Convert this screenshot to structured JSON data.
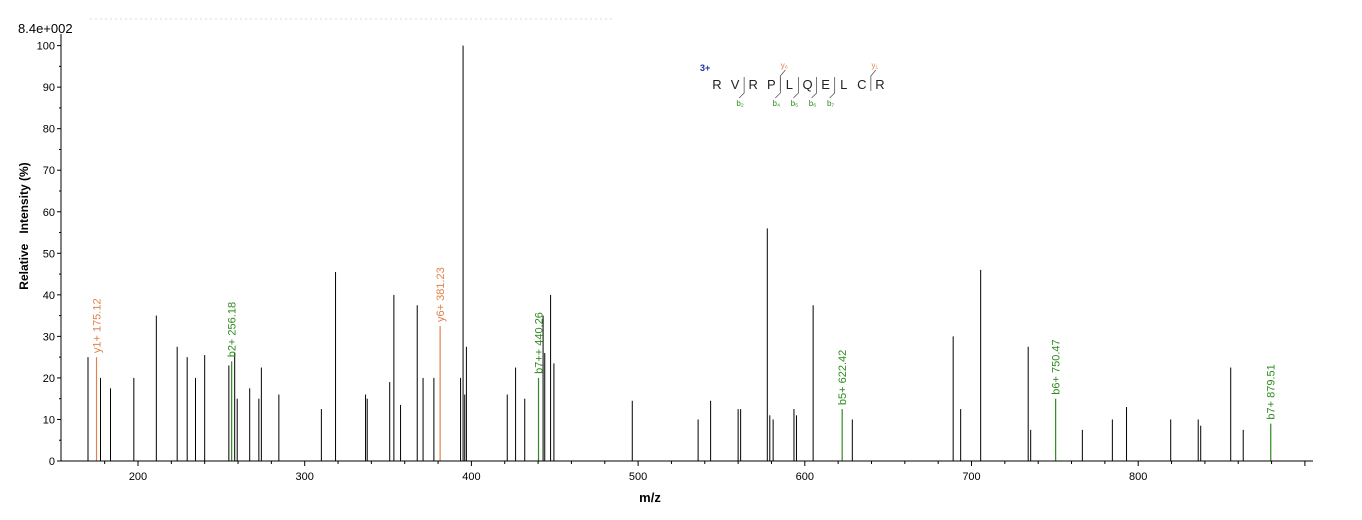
{
  "max_intensity_label": "8.4e+002",
  "chart_data": {
    "type": "bar",
    "xlabel": "m/z",
    "ylabel": "Relative   Intensity (%)",
    "xlim": [
      160,
      910
    ],
    "ylim": [
      0,
      102
    ],
    "x_ticks": [
      200,
      300,
      400,
      500,
      600,
      700,
      800
    ],
    "y_ticks": [
      0,
      10,
      20,
      30,
      40,
      50,
      60,
      70,
      80,
      90,
      100
    ],
    "peaks": [
      {
        "mz": 170.0,
        "intensity": 25
      },
      {
        "mz": 175.12,
        "intensity": 25,
        "label": "y1+ 175.12",
        "ion": "y"
      },
      {
        "mz": 177.5,
        "intensity": 20
      },
      {
        "mz": 183.5,
        "intensity": 17.5
      },
      {
        "mz": 197.5,
        "intensity": 20
      },
      {
        "mz": 211.0,
        "intensity": 35
      },
      {
        "mz": 223.5,
        "intensity": 27.5
      },
      {
        "mz": 229.5,
        "intensity": 25
      },
      {
        "mz": 234.5,
        "intensity": 20
      },
      {
        "mz": 240.0,
        "intensity": 25.5
      },
      {
        "mz": 254.5,
        "intensity": 23
      },
      {
        "mz": 256.18,
        "intensity": 24,
        "label": "b2+ 256.18",
        "ion": "b"
      },
      {
        "mz": 258.0,
        "intensity": 26
      },
      {
        "mz": 259.5,
        "intensity": 15
      },
      {
        "mz": 267.0,
        "intensity": 17.5
      },
      {
        "mz": 272.5,
        "intensity": 15
      },
      {
        "mz": 274.0,
        "intensity": 22.5
      },
      {
        "mz": 284.5,
        "intensity": 16
      },
      {
        "mz": 310.0,
        "intensity": 12.5
      },
      {
        "mz": 318.5,
        "intensity": 45.5
      },
      {
        "mz": 336.5,
        "intensity": 16
      },
      {
        "mz": 337.5,
        "intensity": 15
      },
      {
        "mz": 351.0,
        "intensity": 19
      },
      {
        "mz": 353.5,
        "intensity": 40
      },
      {
        "mz": 357.5,
        "intensity": 13.5
      },
      {
        "mz": 367.5,
        "intensity": 37.5
      },
      {
        "mz": 371.0,
        "intensity": 20
      },
      {
        "mz": 377.5,
        "intensity": 20
      },
      {
        "mz": 381.23,
        "intensity": 32.5,
        "label": "y6+ 381.23",
        "ion": "y"
      },
      {
        "mz": 393.5,
        "intensity": 20
      },
      {
        "mz": 395.0,
        "intensity": 100
      },
      {
        "mz": 396.0,
        "intensity": 16
      },
      {
        "mz": 397.0,
        "intensity": 27.5
      },
      {
        "mz": 421.5,
        "intensity": 16
      },
      {
        "mz": 426.5,
        "intensity": 22.5
      },
      {
        "mz": 432.0,
        "intensity": 15
      },
      {
        "mz": 440.26,
        "intensity": 20,
        "label": "b7++ 440.26",
        "ion": "b"
      },
      {
        "mz": 443.0,
        "intensity": 35
      },
      {
        "mz": 444.0,
        "intensity": 26
      },
      {
        "mz": 447.5,
        "intensity": 40
      },
      {
        "mz": 449.5,
        "intensity": 23.5
      },
      {
        "mz": 496.5,
        "intensity": 14.5
      },
      {
        "mz": 536.0,
        "intensity": 10
      },
      {
        "mz": 543.5,
        "intensity": 14.5
      },
      {
        "mz": 560.0,
        "intensity": 12.5
      },
      {
        "mz": 561.5,
        "intensity": 12.5
      },
      {
        "mz": 577.5,
        "intensity": 56
      },
      {
        "mz": 579.0,
        "intensity": 11
      },
      {
        "mz": 581.0,
        "intensity": 10
      },
      {
        "mz": 593.5,
        "intensity": 12.5
      },
      {
        "mz": 595.0,
        "intensity": 11
      },
      {
        "mz": 605.0,
        "intensity": 37.5
      },
      {
        "mz": 622.42,
        "intensity": 12.5,
        "label": "b5+ 622.42",
        "ion": "b"
      },
      {
        "mz": 628.5,
        "intensity": 10
      },
      {
        "mz": 689.0,
        "intensity": 30
      },
      {
        "mz": 693.5,
        "intensity": 12.5
      },
      {
        "mz": 705.5,
        "intensity": 46
      },
      {
        "mz": 734.0,
        "intensity": 27.5
      },
      {
        "mz": 735.5,
        "intensity": 7.5
      },
      {
        "mz": 750.47,
        "intensity": 15,
        "label": "b6+ 750.47",
        "ion": "b"
      },
      {
        "mz": 766.5,
        "intensity": 7.5
      },
      {
        "mz": 784.5,
        "intensity": 10
      },
      {
        "mz": 793.0,
        "intensity": 13
      },
      {
        "mz": 819.5,
        "intensity": 10
      },
      {
        "mz": 836.0,
        "intensity": 10
      },
      {
        "mz": 837.5,
        "intensity": 8.5
      },
      {
        "mz": 855.5,
        "intensity": 22.5
      },
      {
        "mz": 863.0,
        "intensity": 7.5
      },
      {
        "mz": 879.51,
        "intensity": 9,
        "label": "b7+ 879.51",
        "ion": "b"
      }
    ],
    "colors": {
      "b_ion": "#2e8b1e",
      "y_ion": "#e0824a",
      "unassigned": "#000000",
      "charge": "#1a2fa0"
    },
    "sequence": {
      "charge": "3+",
      "residues": [
        "R",
        "V",
        "R",
        "P",
        "L",
        "Q",
        "E",
        "L",
        "C",
        "R"
      ],
      "b_marks": [
        {
          "after": 2,
          "label": "b₂"
        },
        {
          "after": 4,
          "label": "b₄"
        },
        {
          "after": 5,
          "label": "b₅"
        },
        {
          "after": 6,
          "label": "b₆"
        },
        {
          "after": 7,
          "label": "b₇"
        }
      ],
      "y_marks": [
        {
          "after": 4,
          "label": "y₆"
        },
        {
          "after": 9,
          "label": "y₁"
        }
      ]
    }
  }
}
